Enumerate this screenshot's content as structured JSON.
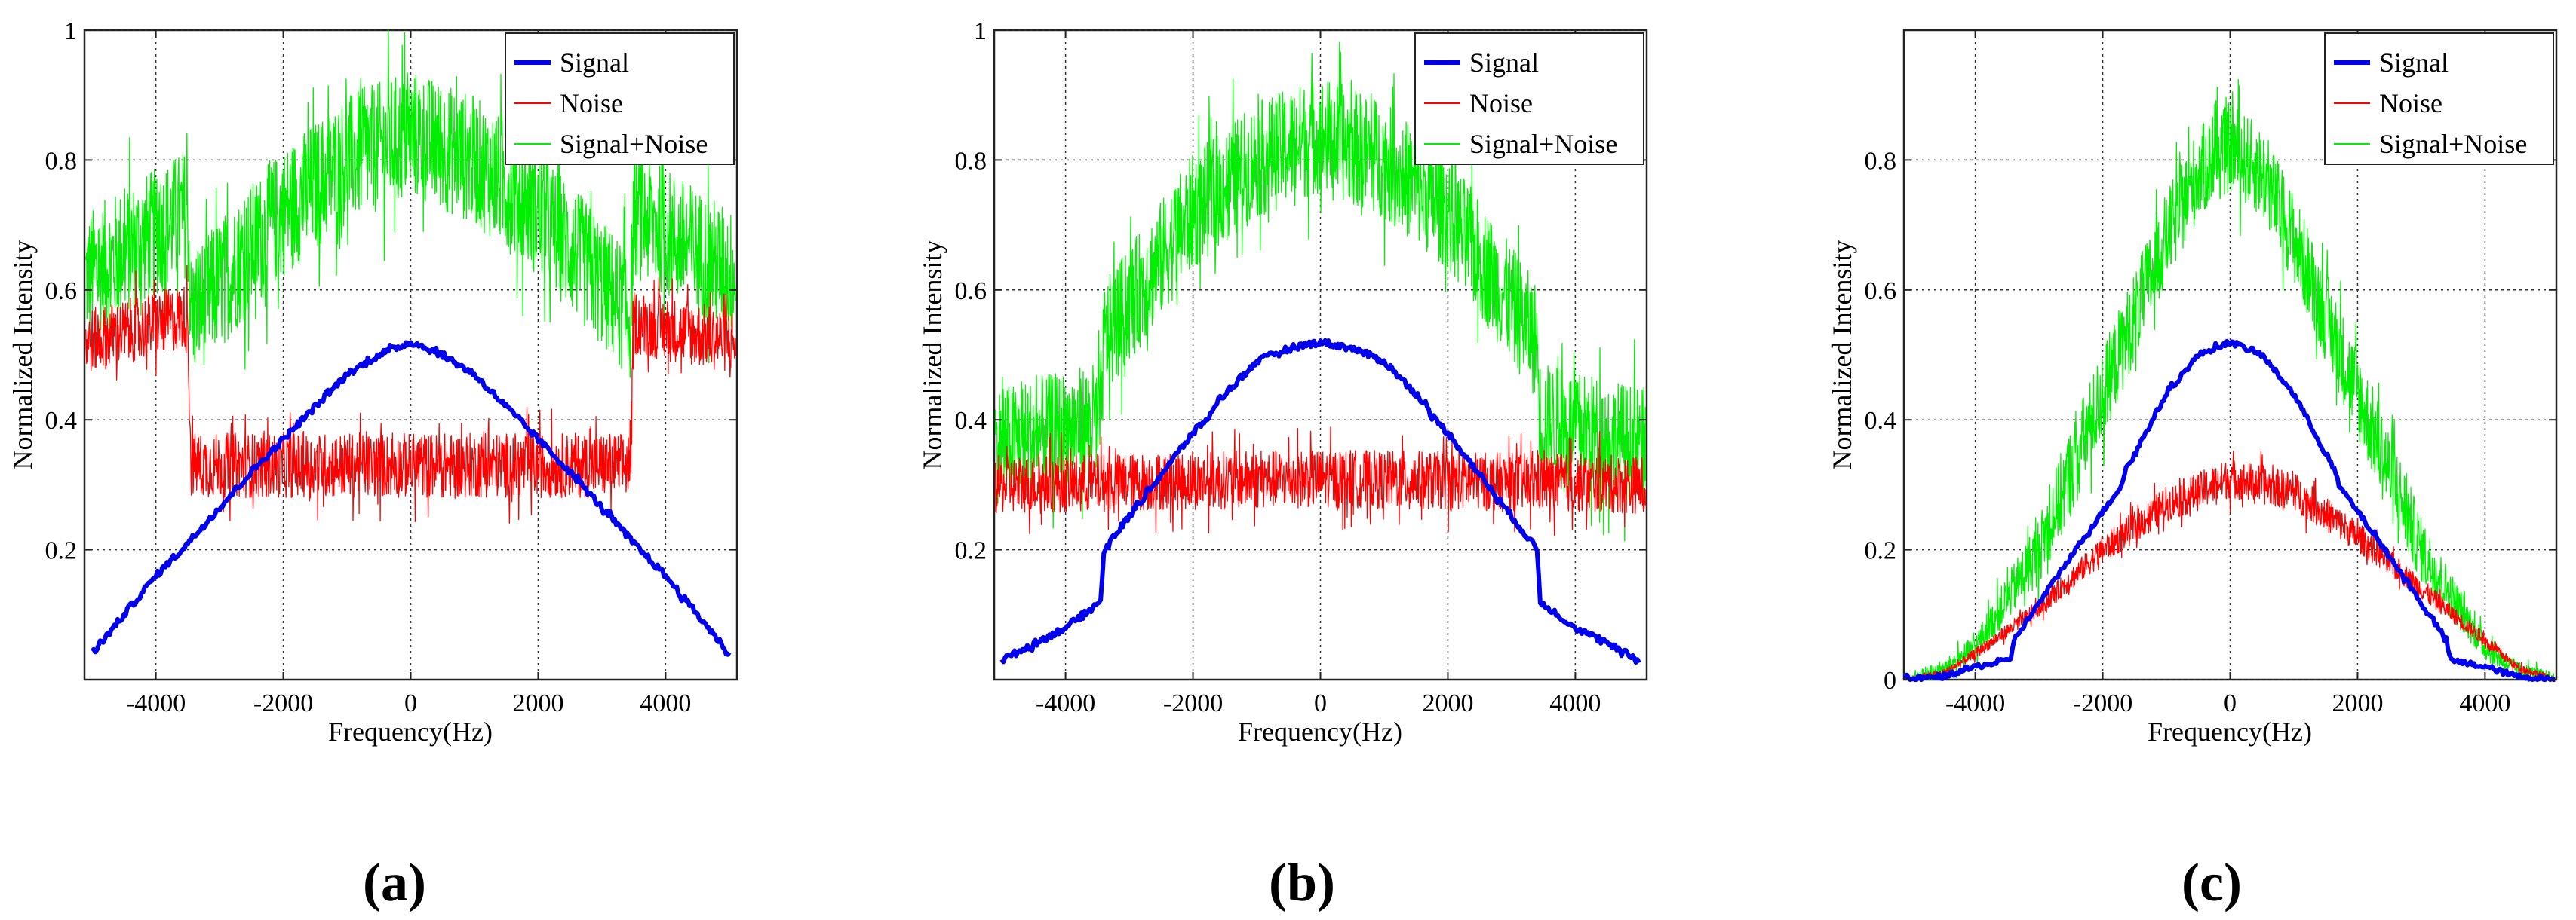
{
  "figure": {
    "colors": {
      "signal": "#0000ee",
      "noise": "#ff0000",
      "signal_noise": "#00ee00",
      "grid": "#333333"
    }
  },
  "chart_data": [
    {
      "type": "line",
      "panel_label": "(a)",
      "xlabel": "Frequency(Hz)",
      "ylabel": "Normalized Intensity",
      "xlim": [
        -5120,
        5120
      ],
      "ylim": [
        0,
        1
      ],
      "xticks": [
        -4000,
        -2000,
        0,
        2000,
        4000
      ],
      "xtick_labels": [
        "-4000",
        "-2000",
        "0",
        "2000",
        "4000"
      ],
      "yticks": [
        0.2,
        0.4,
        0.6,
        0.8,
        1
      ],
      "ytick_labels": [
        "0.2",
        "0.4",
        "0.6",
        "0.8",
        "1"
      ],
      "grid": true,
      "legend": {
        "position": "top-right",
        "entries": [
          "Signal",
          "Noise",
          "Signal+Noise"
        ]
      },
      "series": [
        {
          "name": "Signal",
          "x": [
            -5000,
            -4500,
            -4000,
            -3500,
            -3000,
            -2500,
            -2000,
            -1500,
            -1000,
            -500,
            0,
            500,
            1000,
            1500,
            2000,
            2500,
            3000,
            3500,
            4000,
            4500,
            5000
          ],
          "values": [
            0.04,
            0.1,
            0.16,
            0.21,
            0.265,
            0.32,
            0.37,
            0.42,
            0.47,
            0.5,
            0.52,
            0.5,
            0.47,
            0.42,
            0.37,
            0.32,
            0.265,
            0.21,
            0.16,
            0.1,
            0.04
          ],
          "noise_band": 0.005
        },
        {
          "name": "Noise",
          "x": [
            -5100,
            -3500,
            -3450,
            3450,
            3500,
            5100
          ],
          "values": [
            0.52,
            0.56,
            0.33,
            0.33,
            0.55,
            0.52
          ],
          "noise_band": 0.05
        },
        {
          "name": "Signal+Noise",
          "x": [
            -5100,
            -3500,
            -3450,
            -2000,
            -1000,
            0,
            1000,
            2000,
            3450,
            3500,
            5100
          ],
          "values": [
            0.62,
            0.72,
            0.56,
            0.72,
            0.8,
            0.84,
            0.8,
            0.72,
            0.56,
            0.72,
            0.62
          ],
          "noise_band": 0.1
        }
      ]
    },
    {
      "type": "line",
      "panel_label": "(b)",
      "xlabel": "Frequency(Hz)",
      "ylabel": "Normalized Intensity",
      "xlim": [
        -5120,
        5120
      ],
      "ylim": [
        0,
        1
      ],
      "xticks": [
        -4000,
        -2000,
        0,
        2000,
        4000
      ],
      "xtick_labels": [
        "-4000",
        "-2000",
        "0",
        "2000",
        "4000"
      ],
      "yticks": [
        0.2,
        0.4,
        0.6,
        0.8,
        1
      ],
      "ytick_labels": [
        "0.2",
        "0.4",
        "0.6",
        "0.8",
        "1"
      ],
      "grid": true,
      "legend": {
        "position": "top-right",
        "entries": [
          "Signal",
          "Noise",
          "Signal+Noise"
        ]
      },
      "series": [
        {
          "name": "Signal",
          "x": [
            -5000,
            -4000,
            -3450,
            -3400,
            -2000,
            -1700,
            -1650,
            -1000,
            -500,
            0,
            500,
            1000,
            1650,
            1700,
            2000,
            3400,
            3450,
            4000,
            5000
          ],
          "values": [
            0.03,
            0.08,
            0.12,
            0.2,
            0.38,
            0.41,
            0.425,
            0.49,
            0.51,
            0.52,
            0.51,
            0.49,
            0.425,
            0.41,
            0.38,
            0.2,
            0.12,
            0.08,
            0.03
          ],
          "noise_band": 0.005
        },
        {
          "name": "Noise",
          "x": [
            -5100,
            0,
            5100
          ],
          "values": [
            0.3,
            0.31,
            0.3
          ],
          "noise_band": 0.045
        },
        {
          "name": "Signal+Noise",
          "x": [
            -5100,
            -3450,
            -3400,
            -2000,
            -1000,
            0,
            1000,
            2000,
            3400,
            3450,
            5100
          ],
          "values": [
            0.36,
            0.4,
            0.52,
            0.72,
            0.8,
            0.84,
            0.8,
            0.72,
            0.52,
            0.4,
            0.36
          ],
          "noise_band": 0.09
        }
      ]
    },
    {
      "type": "line",
      "panel_label": "(c)",
      "xlabel": "Frequency(Hz)",
      "ylabel": "Normalized Intensity",
      "xlim": [
        -5120,
        5120
      ],
      "ylim": [
        0,
        1
      ],
      "xticks": [
        -4000,
        -2000,
        0,
        2000,
        4000
      ],
      "xtick_labels": [
        "-4000",
        "-2000",
        "0",
        "2000",
        "4000"
      ],
      "yticks": [
        0,
        0.2,
        0.4,
        0.6,
        0.8
      ],
      "ytick_labels": [
        "0",
        "0.2",
        "0.4",
        "0.6",
        "0.8"
      ],
      "grid": true,
      "legend": {
        "position": "top-right",
        "entries": [
          "Signal",
          "Noise",
          "Signal+Noise"
        ]
      },
      "series": [
        {
          "name": "Signal",
          "x": [
            -5100,
            -4500,
            -4000,
            -3450,
            -3400,
            -2500,
            -1700,
            -1650,
            -1000,
            -500,
            0,
            500,
            1000,
            1650,
            1700,
            2500,
            3400,
            3450,
            4000,
            4500,
            5100
          ],
          "values": [
            0,
            0.005,
            0.02,
            0.03,
            0.06,
            0.19,
            0.3,
            0.32,
            0.44,
            0.5,
            0.52,
            0.5,
            0.44,
            0.32,
            0.3,
            0.19,
            0.06,
            0.03,
            0.02,
            0.005,
            0
          ],
          "noise_band": 0.004
        },
        {
          "name": "Noise",
          "x": [
            -5100,
            -4500,
            -4000,
            -3000,
            -2000,
            -1000,
            0,
            1000,
            2000,
            3000,
            4000,
            4500,
            5100
          ],
          "values": [
            0,
            0.01,
            0.04,
            0.11,
            0.2,
            0.27,
            0.31,
            0.29,
            0.22,
            0.14,
            0.06,
            0.02,
            0
          ],
          "noise_band": 0.03
        },
        {
          "name": "Signal+Noise",
          "x": [
            -5100,
            -4500,
            -4000,
            -3000,
            -2000,
            -1000,
            -500,
            0,
            500,
            1000,
            2000,
            3000,
            4000,
            4500,
            5100
          ],
          "values": [
            0,
            0.015,
            0.05,
            0.2,
            0.44,
            0.68,
            0.78,
            0.82,
            0.78,
            0.68,
            0.44,
            0.2,
            0.05,
            0.015,
            0
          ],
          "noise_band": 0.07
        }
      ]
    }
  ]
}
